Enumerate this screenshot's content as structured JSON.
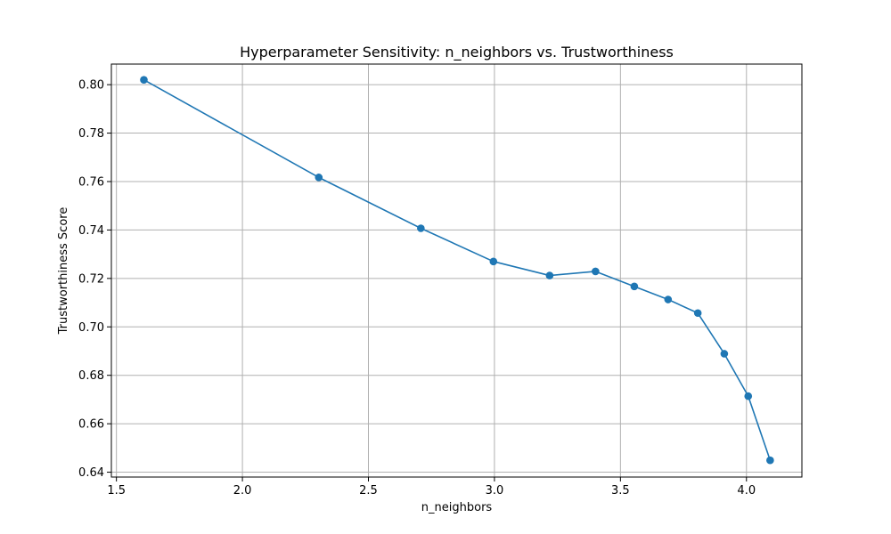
{
  "chart_data": {
    "type": "line",
    "title": "Hyperparameter Sensitivity: n_neighbors vs. Trustworthiness",
    "xlabel": "n_neighbors",
    "ylabel": "Trustworthiness Score",
    "xlim": [
      1.48,
      4.22
    ],
    "ylim": [
      0.638,
      0.8085
    ],
    "x_ticks": [
      1.5,
      2.0,
      2.5,
      3.0,
      3.5,
      4.0
    ],
    "x_tick_labels": [
      "1.5",
      "2.0",
      "2.5",
      "3.0",
      "3.5",
      "4.0"
    ],
    "y_ticks": [
      0.64,
      0.66,
      0.68,
      0.7,
      0.72,
      0.74,
      0.76,
      0.78,
      0.8
    ],
    "y_tick_labels": [
      "0.64",
      "0.66",
      "0.68",
      "0.70",
      "0.72",
      "0.74",
      "0.76",
      "0.78",
      "0.80"
    ],
    "grid": true,
    "series": [
      {
        "color": "#1f77b4",
        "marker": "circle",
        "x": [
          1.609,
          2.303,
          2.708,
          2.996,
          3.219,
          3.401,
          3.555,
          3.689,
          3.807,
          3.912,
          4.007,
          4.094
        ],
        "y": [
          0.802,
          0.7617,
          0.7407,
          0.727,
          0.7212,
          0.7229,
          0.7167,
          0.7113,
          0.7057,
          0.6889,
          0.6714,
          0.6449
        ]
      }
    ]
  }
}
